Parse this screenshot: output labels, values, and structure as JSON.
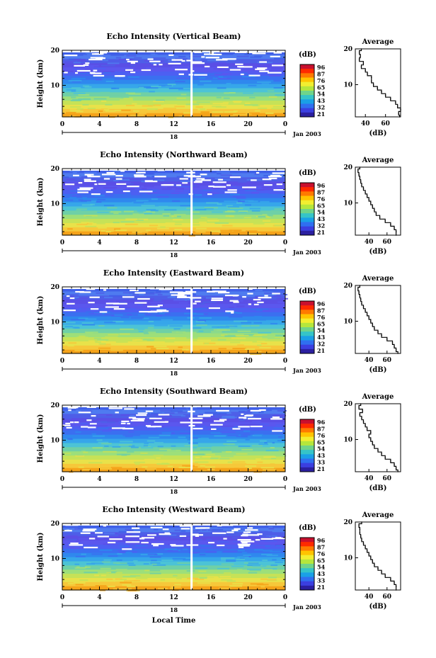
{
  "chart_data": [
    {
      "type": "heatmap",
      "title": "Echo Intensity (Vertical Beam)",
      "ylabel": "Height (km)",
      "xlabel": "",
      "xticks": [
        "0",
        "4",
        "8",
        "12",
        "16",
        "20",
        "0"
      ],
      "yticks": [
        "10",
        "20"
      ],
      "date_marker": "18",
      "date_label": "Jan 2003",
      "xlim": [
        0,
        24
      ],
      "ylim": [
        1,
        20
      ],
      "colorbar": {
        "label": "(dB)",
        "ticks": [
          "96",
          "87",
          "76",
          "65",
          "54",
          "43",
          "32",
          "21"
        ]
      },
      "profile": {
        "title": "Average",
        "xlabel": "(dB)",
        "xticks": [
          "40",
          "60"
        ],
        "yticks": [
          "10",
          "20"
        ],
        "xlim": [
          30,
          75
        ],
        "height_km": [
          1,
          2,
          3,
          4,
          5,
          6,
          7,
          8,
          9,
          10,
          11,
          12,
          13,
          14,
          15,
          16,
          17,
          18,
          19,
          20
        ],
        "values_db": [
          74,
          73,
          75,
          72,
          70,
          65,
          60,
          56,
          52,
          48,
          46,
          46,
          42,
          40,
          36,
          38,
          34,
          35,
          34,
          36
        ]
      }
    },
    {
      "type": "heatmap",
      "title": "Echo Intensity (Northward Beam)",
      "ylabel": "Height (km)",
      "xlabel": "",
      "xticks": [
        "0",
        "4",
        "8",
        "12",
        "16",
        "20",
        "0"
      ],
      "yticks": [
        "10",
        "20"
      ],
      "date_marker": "18",
      "date_label": "Jan 2003",
      "xlim": [
        0,
        24
      ],
      "ylim": [
        1,
        20
      ],
      "colorbar": {
        "label": "(dB)",
        "ticks": [
          "96",
          "87",
          "76",
          "65",
          "54",
          "43",
          "32",
          "21"
        ]
      },
      "profile": {
        "title": "Average",
        "xlabel": "(dB)",
        "xticks": [
          "40",
          "60"
        ],
        "yticks": [
          "10",
          "20"
        ],
        "xlim": [
          25,
          75
        ],
        "height_km": [
          1,
          2,
          3,
          4,
          5,
          6,
          7,
          8,
          9,
          10,
          11,
          12,
          13,
          14,
          15,
          16,
          17,
          18,
          19,
          20
        ],
        "values_db": [
          70,
          70,
          68,
          64,
          58,
          52,
          48,
          46,
          44,
          42,
          40,
          38,
          36,
          34,
          32,
          31,
          30,
          29,
          28,
          30
        ]
      }
    },
    {
      "type": "heatmap",
      "title": "Echo Intensity (Eastward Beam)",
      "ylabel": "Height (km)",
      "xlabel": "",
      "xticks": [
        "0",
        "4",
        "8",
        "12",
        "16",
        "20",
        "0"
      ],
      "yticks": [
        "10",
        "20"
      ],
      "date_marker": "18",
      "date_label": "Jan 2003",
      "xlim": [
        0,
        24
      ],
      "ylim": [
        1,
        20
      ],
      "colorbar": {
        "label": "(dB)",
        "ticks": [
          "96",
          "87",
          "76",
          "65",
          "54",
          "43",
          "32",
          "21"
        ]
      },
      "profile": {
        "title": "Average",
        "xlabel": "(dB)",
        "xticks": [
          "40",
          "60"
        ],
        "yticks": [
          "10",
          "20"
        ],
        "xlim": [
          25,
          75
        ],
        "height_km": [
          1,
          2,
          3,
          4,
          5,
          6,
          7,
          8,
          9,
          10,
          11,
          12,
          13,
          14,
          15,
          16,
          17,
          18,
          19,
          20
        ],
        "values_db": [
          72,
          70,
          68,
          66,
          60,
          54,
          50,
          46,
          44,
          42,
          40,
          38,
          36,
          34,
          32,
          31,
          30,
          29,
          28,
          30
        ]
      }
    },
    {
      "type": "heatmap",
      "title": "Echo Intensity (Southward Beam)",
      "ylabel": "Height (km)",
      "xlabel": "",
      "xticks": [
        "0",
        "4",
        "8",
        "12",
        "16",
        "20",
        "0"
      ],
      "yticks": [
        "10",
        "20"
      ],
      "date_marker": "18",
      "date_label": "Jan 2003",
      "xlim": [
        0,
        24
      ],
      "ylim": [
        1,
        20
      ],
      "colorbar": {
        "label": "(dB)",
        "ticks": [
          "96",
          "87",
          "76",
          "65",
          "54",
          "43",
          "33",
          "21"
        ]
      },
      "profile": {
        "title": "Average",
        "xlabel": "(dB)",
        "xticks": [
          "40",
          "60"
        ],
        "yticks": [
          "10",
          "20"
        ],
        "xlim": [
          25,
          75
        ],
        "height_km": [
          1,
          2,
          3,
          4,
          5,
          6,
          7,
          8,
          9,
          10,
          11,
          12,
          13,
          14,
          15,
          16,
          17,
          18,
          19,
          20
        ],
        "values_db": [
          72,
          70,
          68,
          64,
          58,
          54,
          50,
          46,
          44,
          42,
          40,
          42,
          38,
          36,
          34,
          32,
          30,
          33,
          29,
          31
        ]
      }
    },
    {
      "type": "heatmap",
      "title": "Echo Intensity (Westward Beam)",
      "ylabel": "Height (km)",
      "xlabel": "Local Time",
      "xticks": [
        "0",
        "4",
        "8",
        "12",
        "16",
        "20",
        "0"
      ],
      "yticks": [
        "10",
        "20"
      ],
      "date_marker": "18",
      "date_label": "Jan 2003",
      "xlim": [
        0,
        24
      ],
      "ylim": [
        1,
        20
      ],
      "colorbar": {
        "label": "(dB)",
        "ticks": [
          "96",
          "87",
          "76",
          "65",
          "54",
          "43",
          "33",
          "21"
        ]
      },
      "profile": {
        "title": "Average",
        "xlabel": "(dB)",
        "xticks": [
          "40",
          "60"
        ],
        "yticks": [
          "10",
          "20"
        ],
        "xlim": [
          25,
          75
        ],
        "height_km": [
          1,
          2,
          3,
          4,
          5,
          6,
          7,
          8,
          9,
          10,
          11,
          12,
          13,
          14,
          15,
          16,
          17,
          18,
          19,
          20
        ],
        "values_db": [
          70,
          70,
          68,
          64,
          58,
          54,
          50,
          46,
          44,
          42,
          40,
          38,
          36,
          34,
          32,
          31,
          30,
          30,
          29,
          32
        ]
      }
    }
  ]
}
